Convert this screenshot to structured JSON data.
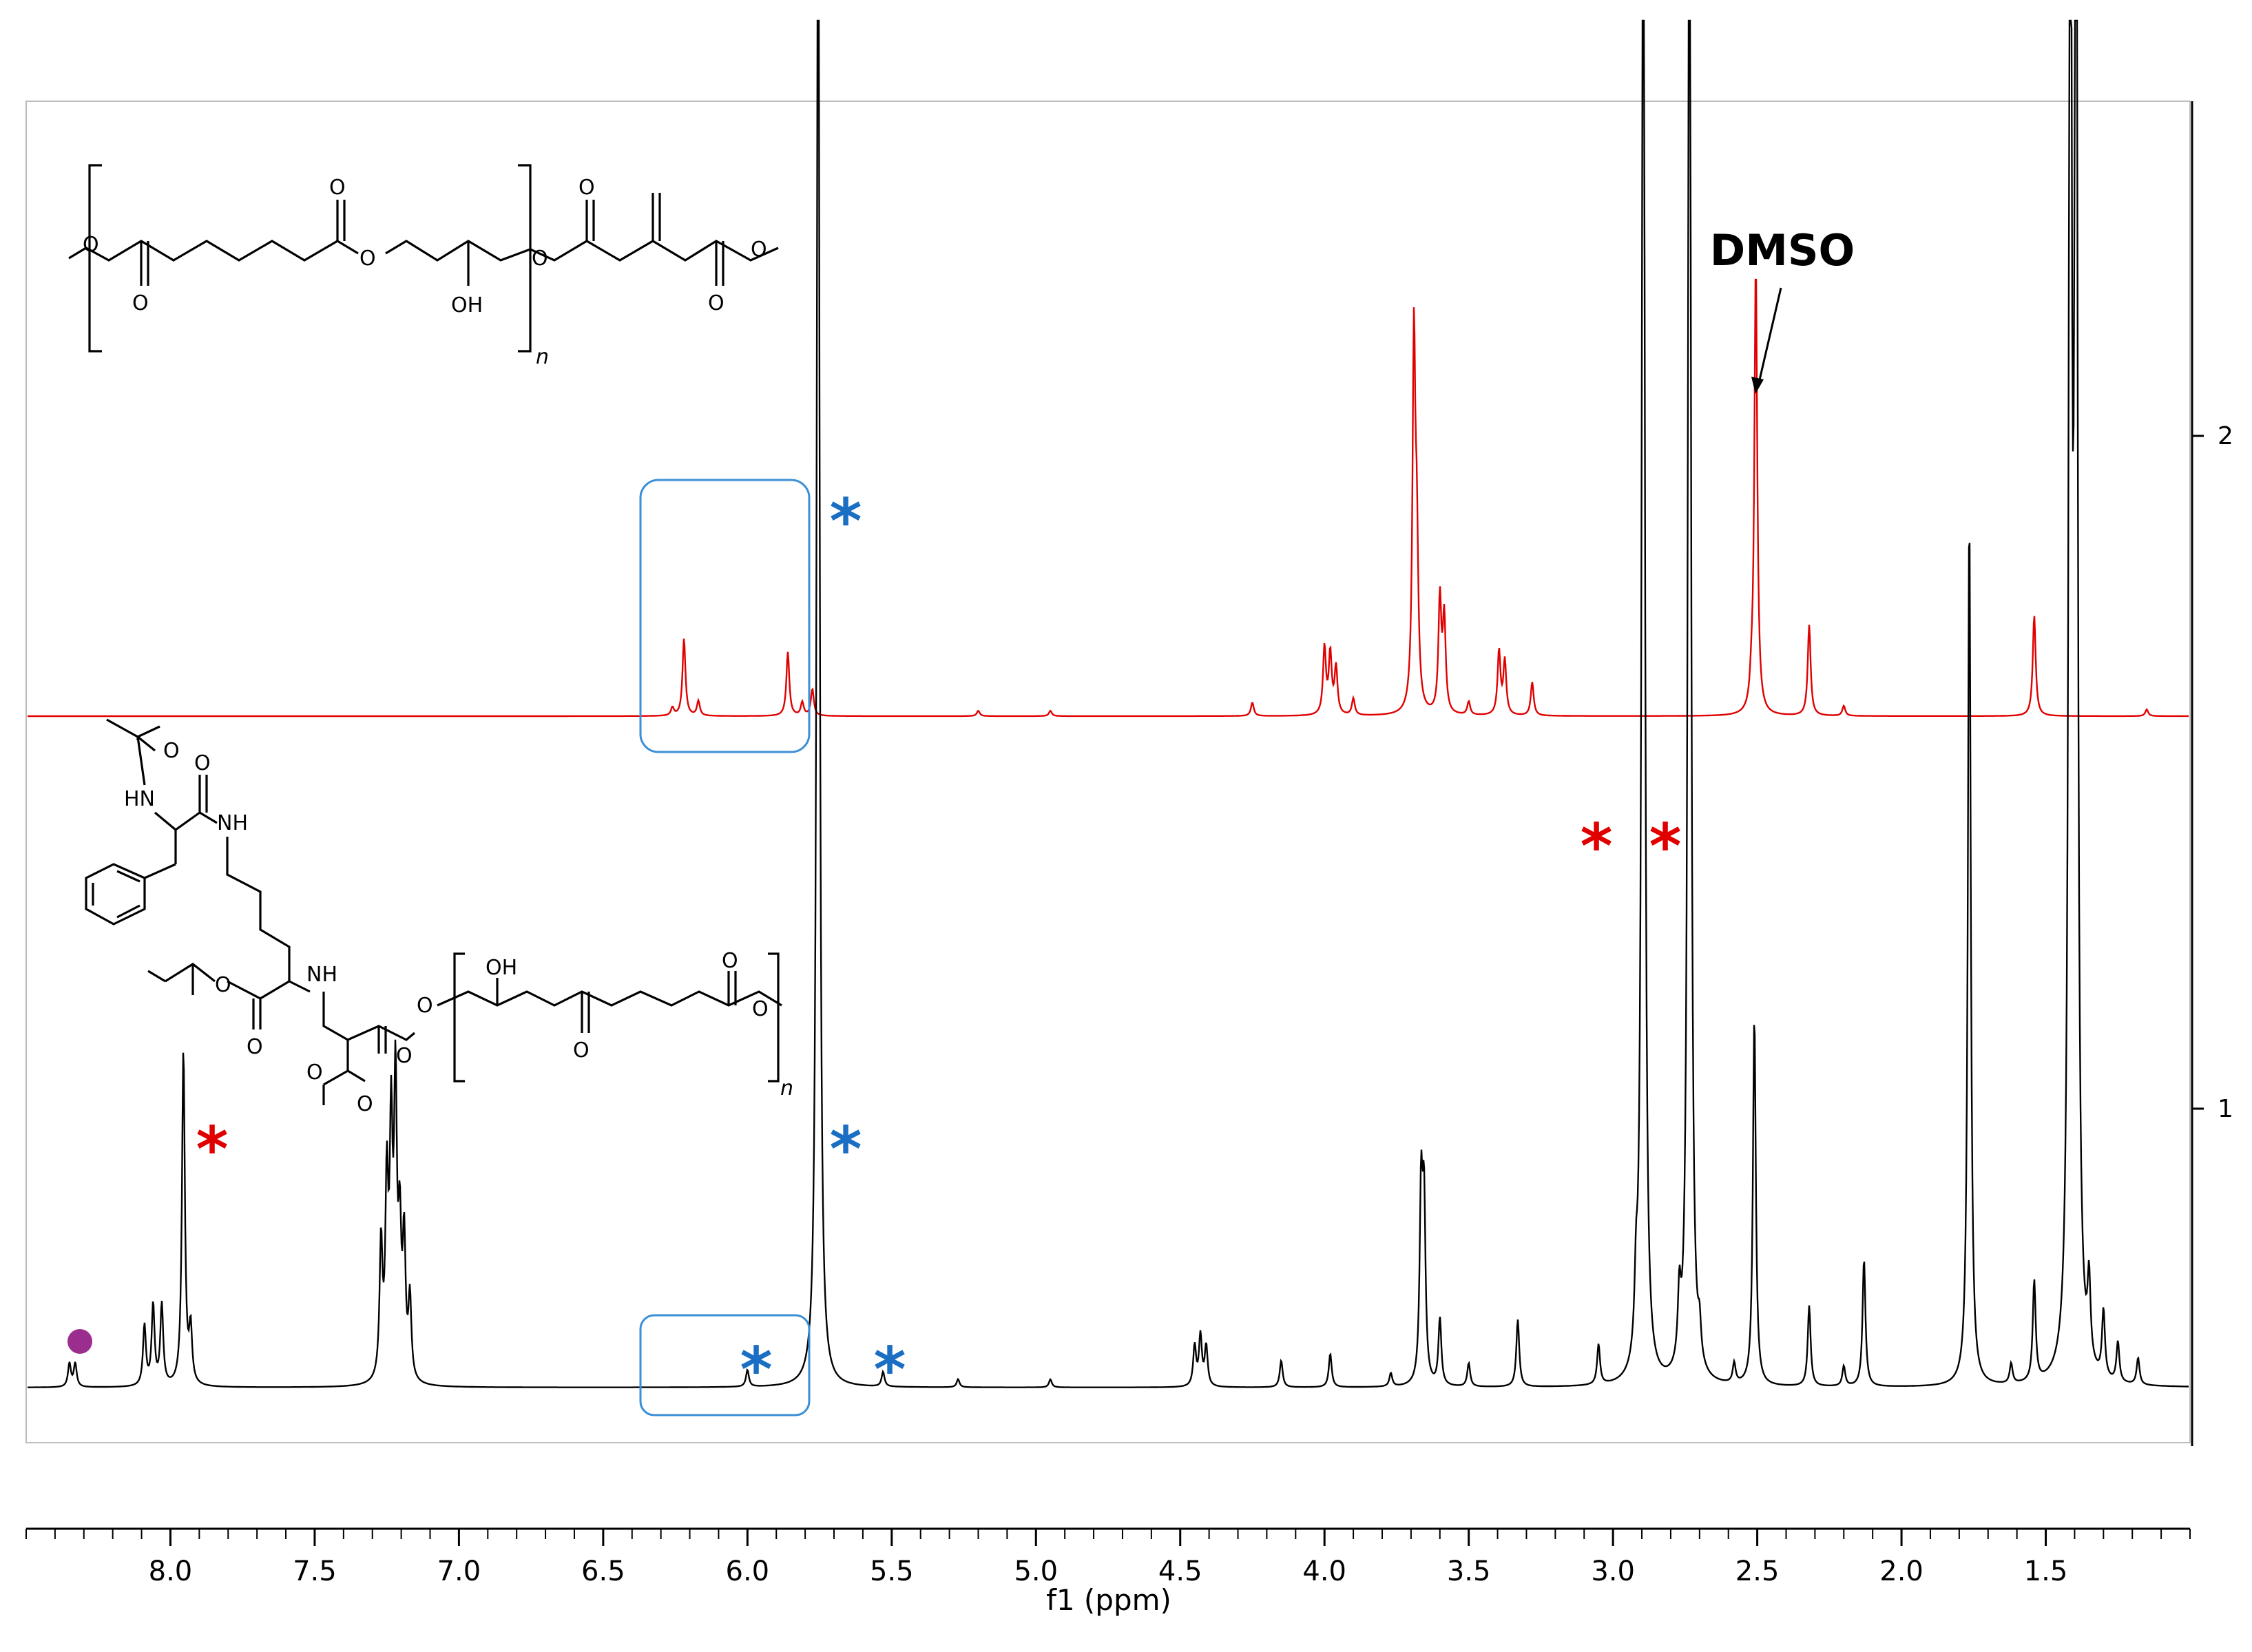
{
  "chart_data": {
    "type": "line",
    "title": "",
    "xlabel": "f1 (ppm)",
    "ylabel": "",
    "xlim": [
      8.5,
      1.0
    ],
    "x_reversed": true,
    "x_ticks": [
      "8.0",
      "7.5",
      "7.0",
      "6.5",
      "6.0",
      "5.5",
      "5.0",
      "4.5",
      "4.0",
      "3.5",
      "3.0",
      "2.5",
      "2.0",
      "1.5"
    ],
    "right_axis_ticks": [
      "1",
      "2"
    ],
    "colors": {
      "spectrum_1": "#000000",
      "spectrum_2": "#e00000",
      "blue_marker": "#1a6fc4",
      "red_marker": "#e00000",
      "dot": "#9b2d8f",
      "box": "#3b8fd6"
    },
    "series": [
      {
        "key": "spectrum_2",
        "peaks": [
          {
            "ppm": 6.22,
            "h": 0.115
          },
          {
            "ppm": 6.26,
            "h": 0.012
          },
          {
            "ppm": 6.17,
            "h": 0.022
          },
          {
            "ppm": 5.86,
            "h": 0.095
          },
          {
            "ppm": 5.81,
            "h": 0.02
          },
          {
            "ppm": 5.775,
            "h": 0.04
          },
          {
            "ppm": 5.2,
            "h": 0.008
          },
          {
            "ppm": 4.95,
            "h": 0.008
          },
          {
            "ppm": 4.25,
            "h": 0.02
          },
          {
            "ppm": 4.0,
            "h": 0.1
          },
          {
            "ppm": 3.98,
            "h": 0.09
          },
          {
            "ppm": 3.96,
            "h": 0.07
          },
          {
            "ppm": 3.9,
            "h": 0.025
          },
          {
            "ppm": 3.69,
            "h": 0.55
          },
          {
            "ppm": 3.68,
            "h": 0.22
          },
          {
            "ppm": 3.6,
            "h": 0.17
          },
          {
            "ppm": 3.585,
            "h": 0.14
          },
          {
            "ppm": 3.5,
            "h": 0.02
          },
          {
            "ppm": 3.395,
            "h": 0.095
          },
          {
            "ppm": 3.375,
            "h": 0.08
          },
          {
            "ppm": 3.28,
            "h": 0.05
          },
          {
            "ppm": 2.505,
            "h": 0.67
          },
          {
            "ppm": 2.52,
            "h": 0.03
          },
          {
            "ppm": 2.32,
            "h": 0.135
          },
          {
            "ppm": 2.2,
            "h": 0.015
          },
          {
            "ppm": 1.54,
            "h": 0.15
          },
          {
            "ppm": 1.15,
            "h": 0.01
          }
        ]
      },
      {
        "key": "spectrum_1",
        "peaks": [
          {
            "ppm": 8.35,
            "h": 0.035
          },
          {
            "ppm": 8.33,
            "h": 0.035
          },
          {
            "ppm": 8.09,
            "h": 0.09
          },
          {
            "ppm": 8.06,
            "h": 0.12
          },
          {
            "ppm": 8.03,
            "h": 0.12
          },
          {
            "ppm": 7.955,
            "h": 0.5
          },
          {
            "ppm": 7.93,
            "h": 0.08
          },
          {
            "ppm": 7.27,
            "h": 0.2
          },
          {
            "ppm": 7.25,
            "h": 0.28
          },
          {
            "ppm": 7.235,
            "h": 0.35
          },
          {
            "ppm": 7.22,
            "h": 0.42
          },
          {
            "ppm": 7.205,
            "h": 0.2
          },
          {
            "ppm": 7.19,
            "h": 0.2
          },
          {
            "ppm": 7.17,
            "h": 0.12
          },
          {
            "ppm": 6.0,
            "h": 0.025
          },
          {
            "ppm": 5.755,
            "h": 2.4
          },
          {
            "ppm": 5.53,
            "h": 0.022
          },
          {
            "ppm": 5.27,
            "h": 0.012
          },
          {
            "ppm": 4.95,
            "h": 0.012
          },
          {
            "ppm": 4.45,
            "h": 0.06
          },
          {
            "ppm": 4.43,
            "h": 0.075
          },
          {
            "ppm": 4.41,
            "h": 0.06
          },
          {
            "ppm": 4.15,
            "h": 0.04
          },
          {
            "ppm": 3.98,
            "h": 0.05
          },
          {
            "ppm": 3.77,
            "h": 0.02
          },
          {
            "ppm": 3.665,
            "h": 0.28
          },
          {
            "ppm": 3.655,
            "h": 0.26
          },
          {
            "ppm": 3.6,
            "h": 0.1
          },
          {
            "ppm": 3.5,
            "h": 0.035
          },
          {
            "ppm": 3.33,
            "h": 0.1
          },
          {
            "ppm": 3.05,
            "h": 0.06
          },
          {
            "ppm": 2.92,
            "h": 0.1
          },
          {
            "ppm": 2.895,
            "h": 2.6
          },
          {
            "ppm": 2.735,
            "h": 2.6
          },
          {
            "ppm": 2.77,
            "h": 0.1
          },
          {
            "ppm": 2.7,
            "h": 0.05
          },
          {
            "ppm": 2.51,
            "h": 0.55
          },
          {
            "ppm": 2.58,
            "h": 0.03
          },
          {
            "ppm": 2.32,
            "h": 0.12
          },
          {
            "ppm": 2.2,
            "h": 0.03
          },
          {
            "ppm": 2.13,
            "h": 0.19
          },
          {
            "ppm": 1.765,
            "h": 1.3
          },
          {
            "ppm": 1.62,
            "h": 0.03
          },
          {
            "ppm": 1.54,
            "h": 0.15
          },
          {
            "ppm": 1.415,
            "h": 2.6
          },
          {
            "ppm": 1.395,
            "h": 2.6
          },
          {
            "ppm": 1.35,
            "h": 0.12
          },
          {
            "ppm": 1.3,
            "h": 0.1
          },
          {
            "ppm": 1.25,
            "h": 0.06
          },
          {
            "ppm": 1.18,
            "h": 0.04
          }
        ]
      }
    ],
    "annotations": {
      "dmso": "DMSO",
      "star": "*",
      "structure_top": {
        "oh": "OH",
        "n": "n"
      },
      "structure_bottom": {
        "o": "O",
        "nh": "NH",
        "hn": "HN",
        "oh": "OH",
        "n": "n"
      }
    }
  }
}
